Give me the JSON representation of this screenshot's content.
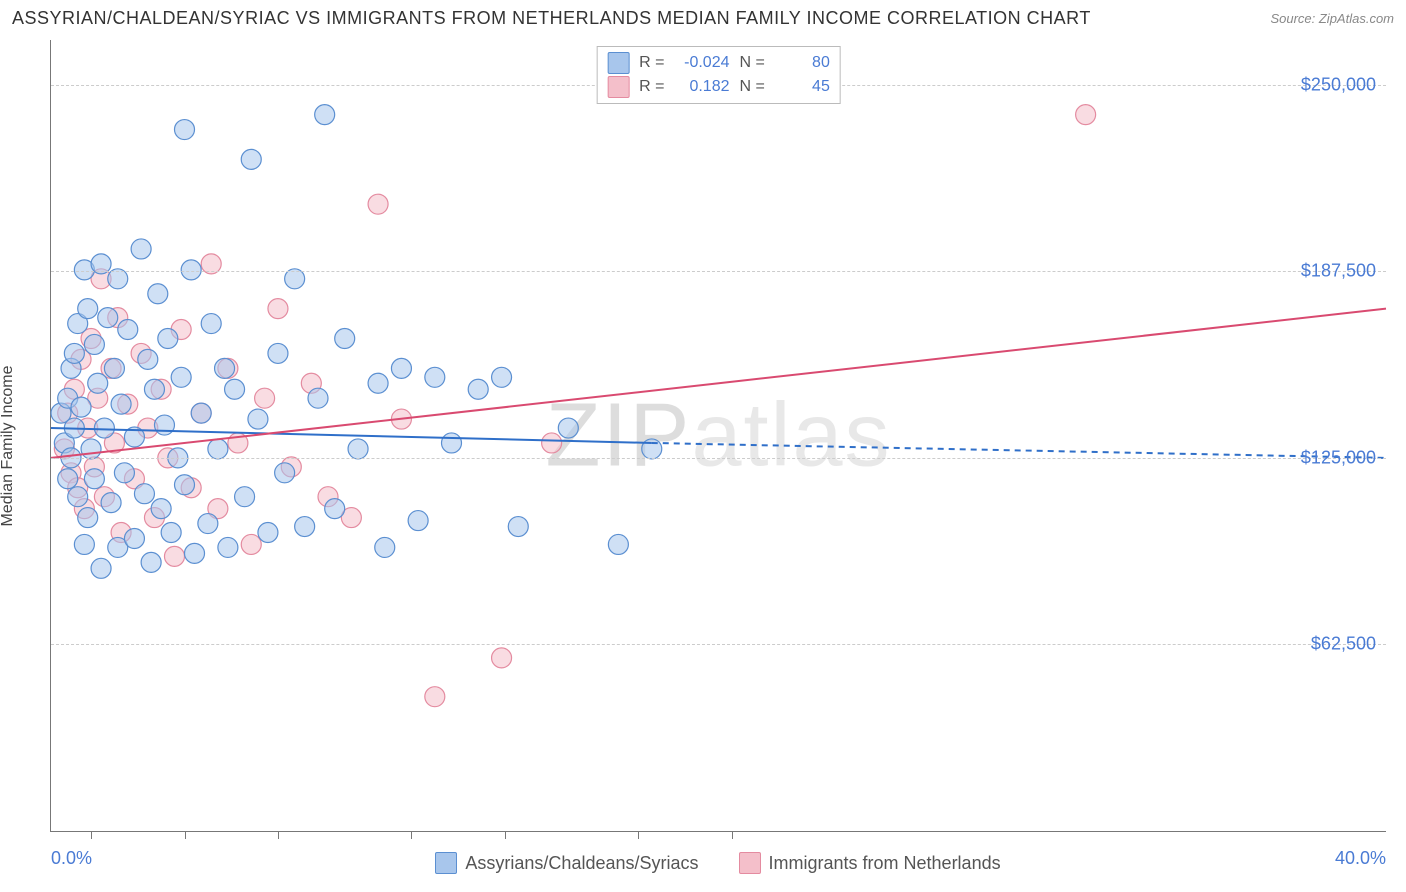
{
  "header": {
    "title": "ASSYRIAN/CHALDEAN/SYRIAC VS IMMIGRANTS FROM NETHERLANDS MEDIAN FAMILY INCOME CORRELATION CHART",
    "source": "Source: ZipAtlas.com"
  },
  "ylabel": "Median Family Income",
  "watermark": {
    "zip": "ZIP",
    "atlas": "atlas"
  },
  "chart": {
    "type": "scatter",
    "xlim": [
      0,
      40
    ],
    "ylim": [
      0,
      265000
    ],
    "x_axis_labels": [
      {
        "pct": 0,
        "text": "0.0%"
      },
      {
        "pct": 100,
        "text": "40.0%"
      }
    ],
    "x_ticks_pct": [
      3,
      10,
      17,
      27,
      34,
      44,
      51
    ],
    "y_gridlines": [
      62500,
      125000,
      187500,
      250000
    ],
    "y_tick_labels": [
      "$62,500",
      "$125,000",
      "$187,500",
      "$250,000"
    ],
    "background_color": "#ffffff",
    "grid_color": "#cccccc",
    "axis_label_color": "#4a7bd4"
  },
  "series": {
    "blue": {
      "name": "Assyrians/Chaldeans/Syriacs",
      "R": "-0.024",
      "N": "80",
      "fill": "#a8c6ec",
      "stroke": "#5b8fd1",
      "fill_opacity": 0.55,
      "marker_radius": 10,
      "regression": {
        "solid": {
          "x1": 0,
          "y1": 135000,
          "x2": 18,
          "y2": 130000
        },
        "dashed": {
          "x1": 18,
          "y1": 130000,
          "x2": 40,
          "y2": 125000
        },
        "color": "#2f6fc9",
        "width": 2
      },
      "points": [
        [
          0.3,
          140000
        ],
        [
          0.4,
          130000
        ],
        [
          0.5,
          145000
        ],
        [
          0.5,
          118000
        ],
        [
          0.6,
          155000
        ],
        [
          0.6,
          125000
        ],
        [
          0.7,
          160000
        ],
        [
          0.7,
          135000
        ],
        [
          0.8,
          170000
        ],
        [
          0.8,
          112000
        ],
        [
          0.9,
          142000
        ],
        [
          1.0,
          188000
        ],
        [
          1.0,
          96000
        ],
        [
          1.1,
          175000
        ],
        [
          1.1,
          105000
        ],
        [
          1.2,
          128000
        ],
        [
          1.3,
          163000
        ],
        [
          1.3,
          118000
        ],
        [
          1.4,
          150000
        ],
        [
          1.5,
          190000
        ],
        [
          1.5,
          88000
        ],
        [
          1.6,
          135000
        ],
        [
          1.7,
          172000
        ],
        [
          1.8,
          110000
        ],
        [
          1.9,
          155000
        ],
        [
          2.0,
          185000
        ],
        [
          2.0,
          95000
        ],
        [
          2.1,
          143000
        ],
        [
          2.2,
          120000
        ],
        [
          2.3,
          168000
        ],
        [
          2.5,
          132000
        ],
        [
          2.5,
          98000
        ],
        [
          2.7,
          195000
        ],
        [
          2.8,
          113000
        ],
        [
          2.9,
          158000
        ],
        [
          3.0,
          90000
        ],
        [
          3.1,
          148000
        ],
        [
          3.2,
          180000
        ],
        [
          3.3,
          108000
        ],
        [
          3.4,
          136000
        ],
        [
          3.5,
          165000
        ],
        [
          3.6,
          100000
        ],
        [
          3.8,
          125000
        ],
        [
          3.9,
          152000
        ],
        [
          4.0,
          116000
        ],
        [
          4.2,
          188000
        ],
        [
          4.3,
          93000
        ],
        [
          4.5,
          140000
        ],
        [
          4.7,
          103000
        ],
        [
          4.8,
          170000
        ],
        [
          5.0,
          128000
        ],
        [
          5.2,
          155000
        ],
        [
          5.3,
          95000
        ],
        [
          5.5,
          148000
        ],
        [
          5.8,
          112000
        ],
        [
          6.0,
          225000
        ],
        [
          6.2,
          138000
        ],
        [
          6.5,
          100000
        ],
        [
          6.8,
          160000
        ],
        [
          7.0,
          120000
        ],
        [
          7.3,
          185000
        ],
        [
          7.6,
          102000
        ],
        [
          8.0,
          145000
        ],
        [
          8.2,
          240000
        ],
        [
          8.5,
          108000
        ],
        [
          8.8,
          165000
        ],
        [
          9.2,
          128000
        ],
        [
          9.8,
          150000
        ],
        [
          10.0,
          95000
        ],
        [
          10.5,
          155000
        ],
        [
          11.0,
          104000
        ],
        [
          11.5,
          152000
        ],
        [
          12.0,
          130000
        ],
        [
          12.8,
          148000
        ],
        [
          13.5,
          152000
        ],
        [
          14.0,
          102000
        ],
        [
          15.5,
          135000
        ],
        [
          17.0,
          96000
        ],
        [
          18.0,
          128000
        ],
        [
          4.0,
          235000
        ]
      ]
    },
    "pink": {
      "name": "Immigrants from Netherlands",
      "R": "0.182",
      "N": "45",
      "fill": "#f4bfca",
      "stroke": "#e48ba0",
      "fill_opacity": 0.55,
      "marker_radius": 10,
      "regression": {
        "solid": {
          "x1": 0,
          "y1": 125000,
          "x2": 40,
          "y2": 175000
        },
        "dashed": null,
        "color": "#d94a70",
        "width": 2
      },
      "points": [
        [
          0.4,
          128000
        ],
        [
          0.5,
          140000
        ],
        [
          0.6,
          120000
        ],
        [
          0.7,
          148000
        ],
        [
          0.8,
          115000
        ],
        [
          0.9,
          158000
        ],
        [
          1.0,
          108000
        ],
        [
          1.1,
          135000
        ],
        [
          1.2,
          165000
        ],
        [
          1.3,
          122000
        ],
        [
          1.4,
          145000
        ],
        [
          1.5,
          185000
        ],
        [
          1.6,
          112000
        ],
        [
          1.8,
          155000
        ],
        [
          1.9,
          130000
        ],
        [
          2.0,
          172000
        ],
        [
          2.1,
          100000
        ],
        [
          2.3,
          143000
        ],
        [
          2.5,
          118000
        ],
        [
          2.7,
          160000
        ],
        [
          2.9,
          135000
        ],
        [
          3.1,
          105000
        ],
        [
          3.3,
          148000
        ],
        [
          3.5,
          125000
        ],
        [
          3.7,
          92000
        ],
        [
          3.9,
          168000
        ],
        [
          4.2,
          115000
        ],
        [
          4.5,
          140000
        ],
        [
          4.8,
          190000
        ],
        [
          5.0,
          108000
        ],
        [
          5.3,
          155000
        ],
        [
          5.6,
          130000
        ],
        [
          6.0,
          96000
        ],
        [
          6.4,
          145000
        ],
        [
          6.8,
          175000
        ],
        [
          7.2,
          122000
        ],
        [
          7.8,
          150000
        ],
        [
          8.3,
          112000
        ],
        [
          9.0,
          105000
        ],
        [
          9.8,
          210000
        ],
        [
          10.5,
          138000
        ],
        [
          11.5,
          45000
        ],
        [
          13.5,
          58000
        ],
        [
          15.0,
          130000
        ],
        [
          31.0,
          240000
        ]
      ]
    }
  },
  "legends": {
    "top": {
      "R_label": "R =",
      "N_label": "N ="
    },
    "bottom": {
      "blue_label": "Assyrians/Chaldeans/Syriacs",
      "pink_label": "Immigrants from Netherlands"
    }
  }
}
